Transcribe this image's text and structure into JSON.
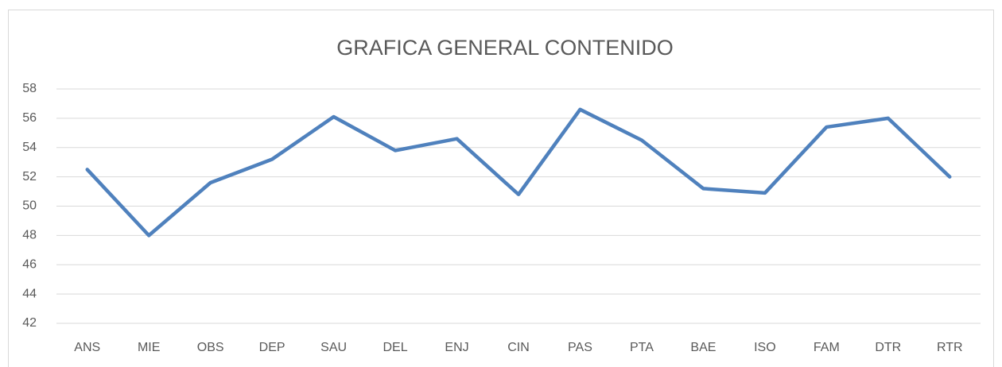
{
  "chart_data": {
    "type": "line",
    "title": "GRAFICA GENERAL CONTENIDO",
    "categories": [
      "ANS",
      "MIE",
      "OBS",
      "DEP",
      "SAU",
      "DEL",
      "ENJ",
      "CIN",
      "PAS",
      "PTA",
      "BAE",
      "ISO",
      "FAM",
      "DTR",
      "RTR"
    ],
    "series": [
      {
        "name": "CONTENIDO",
        "color": "#4f81bd",
        "values": [
          52.5,
          48.0,
          51.6,
          53.2,
          56.1,
          53.8,
          54.6,
          50.8,
          56.6,
          54.5,
          51.2,
          50.9,
          55.4,
          56.0,
          52.0
        ]
      }
    ],
    "ylim": [
      42,
      58
    ],
    "yticks": [
      42,
      44,
      46,
      48,
      50,
      52,
      54,
      56,
      58
    ],
    "grid": true
  }
}
